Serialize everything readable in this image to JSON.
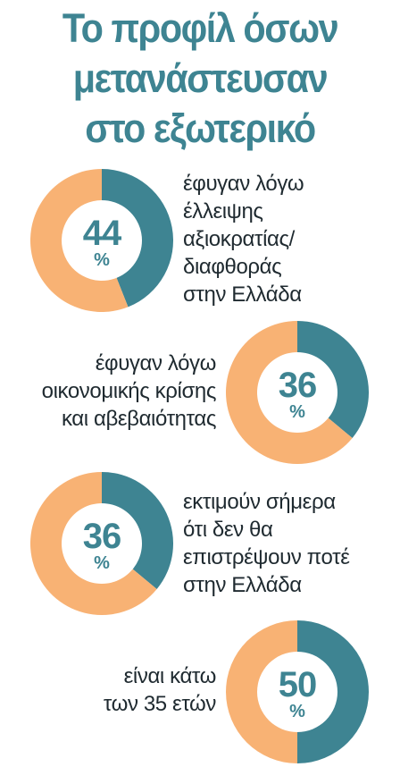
{
  "title": {
    "lines": [
      "Το προφίλ όσων",
      "μετανάστευσαν",
      "στο εξωτερικό"
    ]
  },
  "colors": {
    "teal": "#3e8492",
    "orange": "#f8b274",
    "text": "#1f2a30"
  },
  "chart_data": [
    {
      "type": "pie",
      "values": [
        44,
        56
      ],
      "label_value": "44",
      "unit": "%",
      "caption": [
        "έφυγαν λόγω",
        "έλλειψης",
        "αξιοκρατίας/",
        "διαφθοράς",
        "στην Ελλάδα"
      ]
    },
    {
      "type": "pie",
      "values": [
        36,
        64
      ],
      "label_value": "36",
      "unit": "%",
      "caption": [
        "έφυγαν λόγω",
        "οικονομικής κρίσης",
        "και αβεβαιότητας"
      ]
    },
    {
      "type": "pie",
      "values": [
        36,
        64
      ],
      "label_value": "36",
      "unit": "%",
      "caption": [
        "εκτιμούν σήμερα",
        "ότι δεν θα",
        "επιστρέψουν ποτέ",
        "στην Ελλάδα"
      ]
    },
    {
      "type": "pie",
      "values": [
        50,
        50
      ],
      "label_value": "50",
      "unit": "%",
      "caption": [
        "είναι κάτω",
        "των 35 ετών"
      ]
    }
  ]
}
